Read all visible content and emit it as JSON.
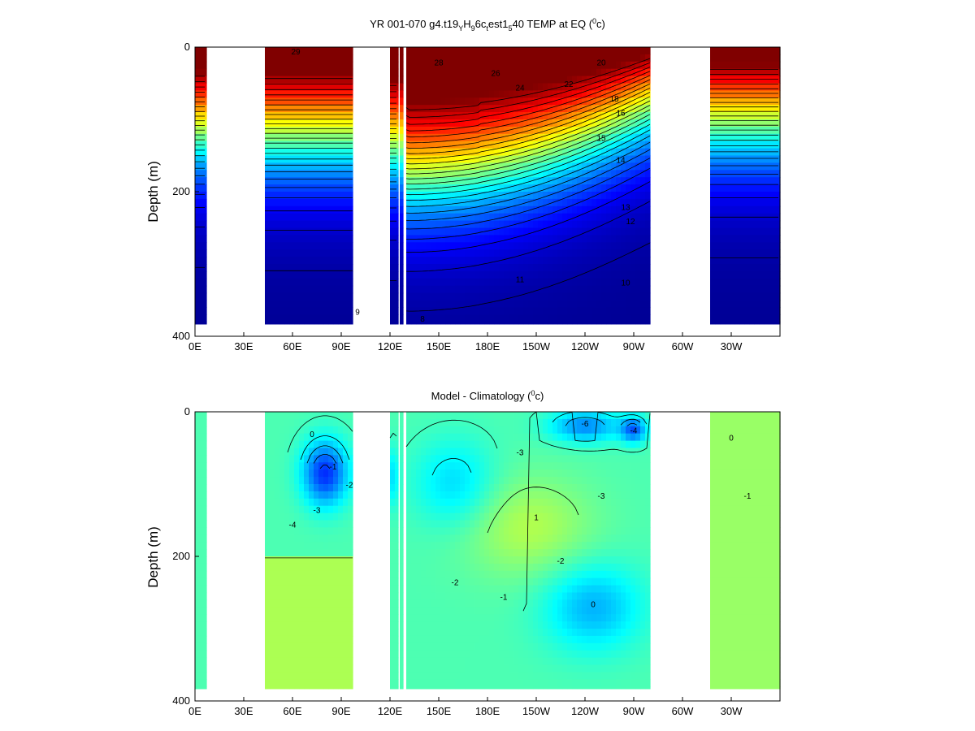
{
  "chart_data": [
    {
      "type": "heatmap",
      "title_parts": [
        "YR 001-070 g4.t19",
        "Y",
        "H",
        "9",
        "6c",
        "t",
        "est1",
        "5",
        "40 TEMP at EQ (",
        "0",
        "c)"
      ],
      "ylabel": "Depth (m)",
      "yticks": [
        "0",
        "200",
        "400"
      ],
      "xticks": [
        "0E",
        "30E",
        "60E",
        "90E",
        "120E",
        "150E",
        "180E",
        "150W",
        "120W",
        "90W",
        "60W",
        "30W"
      ],
      "xlim_deg_east": [
        0,
        360
      ],
      "ylim_m": [
        0,
        400
      ],
      "colormap": "jet",
      "color_range": [
        4,
        30
      ],
      "ocean_segments_deg_east": [
        [
          0,
          7
        ],
        [
          43,
          97
        ],
        [
          120,
          125
        ],
        [
          126,
          128
        ],
        [
          130,
          280
        ],
        [
          317,
          360
        ]
      ],
      "contour_labels": [
        "29",
        "28",
        "26",
        "24",
        "22",
        "20",
        "18",
        "16",
        "15",
        "14",
        "13",
        "12",
        "11",
        "10",
        "9",
        "8"
      ]
    },
    {
      "type": "heatmap",
      "title_parts": [
        "Model - Climatology (",
        "0",
        "c)"
      ],
      "ylabel": "Depth (m)",
      "yticks": [
        "0",
        "200",
        "400"
      ],
      "xticks": [
        "0E",
        "30E",
        "60E",
        "90E",
        "120E",
        "150E",
        "180E",
        "150W",
        "120W",
        "90W",
        "60W",
        "30W"
      ],
      "xlim_deg_east": [
        0,
        360
      ],
      "ylim_m": [
        0,
        400
      ],
      "colormap": "jet",
      "color_range": [
        -8,
        8
      ],
      "ocean_segments_deg_east": [
        [
          0,
          7
        ],
        [
          43,
          97
        ],
        [
          120,
          125
        ],
        [
          126,
          128
        ],
        [
          130,
          280
        ],
        [
          317,
          360
        ]
      ],
      "contour_labels": [
        "0",
        "-1",
        "-2",
        "-3",
        "-4",
        "-6",
        "1",
        "-3",
        "-2",
        "-1",
        "0",
        "-4",
        "-3",
        "-2",
        "0",
        "-1"
      ]
    }
  ]
}
